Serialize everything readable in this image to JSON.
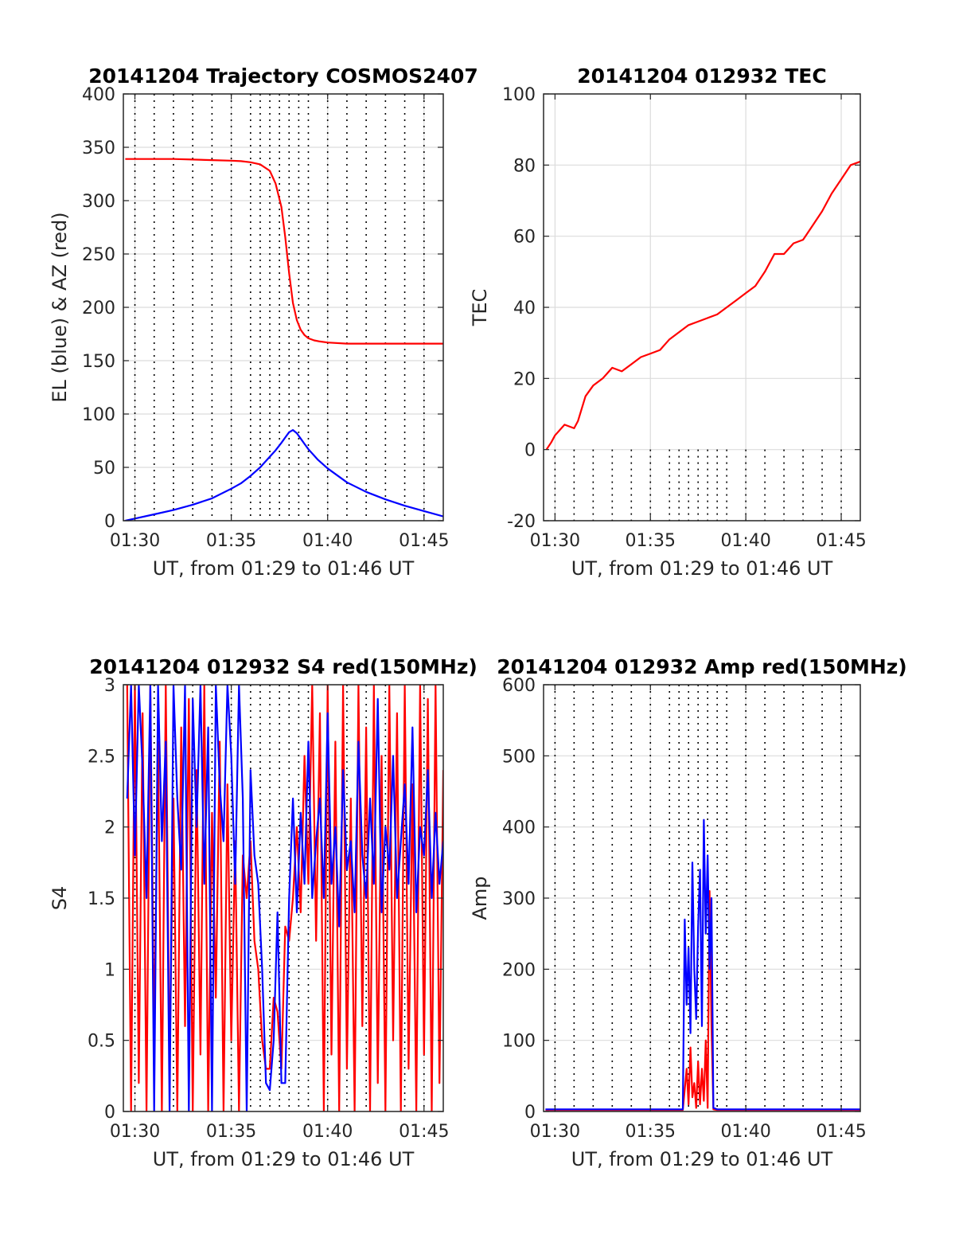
{
  "chart_data": [
    {
      "id": "trajectory",
      "type": "line",
      "title": "20141204 Trajectory COSMOS2407",
      "xlabel": "UT, from 01:29 to 01:46 UT",
      "ylabel": "EL (blue) & AZ (red)",
      "xlim": [
        29.4,
        46.0
      ],
      "ylim": [
        0,
        400
      ],
      "xticks": [
        {
          "v": 30,
          "label": "01:30"
        },
        {
          "v": 35,
          "label": "01:35"
        },
        {
          "v": 40,
          "label": "01:40"
        },
        {
          "v": 45,
          "label": "01:45"
        }
      ],
      "yticks": [
        0,
        50,
        100,
        150,
        200,
        250,
        300,
        350,
        400
      ],
      "grid": true,
      "vlines": [
        30,
        31,
        32,
        33,
        34,
        35,
        36,
        36.5,
        37,
        37.5,
        38,
        38.5,
        39,
        40,
        41,
        42,
        43,
        44,
        45
      ],
      "series": [
        {
          "color": "#ff0000",
          "x": [
            29.5,
            30,
            31,
            32,
            33,
            34,
            35,
            35.5,
            36,
            36.5,
            37,
            37.3,
            37.6,
            37.8,
            38.0,
            38.2,
            38.4,
            38.6,
            38.8,
            39.0,
            39.3,
            39.6,
            40,
            41,
            42,
            43,
            44,
            45,
            46
          ],
          "values": [
            339,
            339,
            339,
            339,
            338.5,
            338,
            337.5,
            337,
            336,
            334,
            328,
            316,
            294,
            266,
            232,
            204,
            188,
            179,
            174,
            171,
            169,
            168,
            167,
            166,
            166,
            166,
            166,
            166,
            166
          ]
        },
        {
          "color": "#0000ff",
          "x": [
            29.5,
            30,
            31,
            32,
            33,
            34,
            35,
            35.5,
            36,
            36.5,
            37,
            37.3,
            37.6,
            37.8,
            38.0,
            38.2,
            38.4,
            38.6,
            38.8,
            39.0,
            39.5,
            40,
            41,
            42,
            43,
            44,
            45,
            46
          ],
          "values": [
            0,
            2,
            6,
            10,
            15,
            21,
            30,
            35,
            42,
            50,
            60,
            66,
            73,
            78,
            83,
            85,
            82,
            77,
            72,
            67,
            57,
            49,
            36,
            27,
            20,
            14,
            9,
            4
          ]
        }
      ]
    },
    {
      "id": "tec",
      "type": "line",
      "title": "20141204 012932 TEC",
      "xlabel": "UT, from 01:29 to 01:46 UT",
      "ylabel": "TEC",
      "xlim": [
        29.4,
        46.0
      ],
      "ylim": [
        -20,
        100
      ],
      "xticks": [
        {
          "v": 30,
          "label": "01:30"
        },
        {
          "v": 35,
          "label": "01:35"
        },
        {
          "v": 40,
          "label": "01:40"
        },
        {
          "v": 45,
          "label": "01:45"
        }
      ],
      "yticks": [
        -20,
        0,
        20,
        40,
        60,
        80,
        100
      ],
      "grid": true,
      "vline_range": [
        -20,
        0
      ],
      "vlines": [
        30,
        31,
        32,
        33,
        34,
        35,
        36,
        36.5,
        37,
        37.5,
        38,
        38.5,
        39,
        40,
        41,
        42,
        43,
        44,
        45
      ],
      "series": [
        {
          "color": "#ff0000",
          "x": [
            29.55,
            29.8,
            30,
            30.5,
            31,
            31.2,
            31.6,
            32,
            32.5,
            33,
            33.5,
            34,
            34.5,
            35,
            35.5,
            36,
            36.5,
            37,
            37.5,
            38,
            38.5,
            39,
            39.5,
            40,
            40.5,
            41,
            41.5,
            42,
            42.5,
            43,
            43.5,
            44,
            44.5,
            45,
            45.5,
            46
          ],
          "values": [
            0,
            2,
            4,
            7,
            6,
            8,
            15,
            18,
            20,
            23,
            22,
            24,
            26,
            27,
            28,
            31,
            33,
            35,
            36,
            37,
            38,
            40,
            42,
            44,
            46,
            50,
            55,
            55,
            58,
            59,
            63,
            67,
            72,
            76,
            80,
            81
          ]
        }
      ]
    },
    {
      "id": "s4",
      "type": "line",
      "title": "20141204 012932 S4 red(150MHz)",
      "xlabel": "UT, from 01:29 to 01:46 UT",
      "ylabel": "S4",
      "xlim": [
        29.4,
        46.0
      ],
      "ylim": [
        0,
        3
      ],
      "xticks": [
        {
          "v": 30,
          "label": "01:30"
        },
        {
          "v": 35,
          "label": "01:35"
        },
        {
          "v": 40,
          "label": "01:40"
        },
        {
          "v": 45,
          "label": "01:45"
        }
      ],
      "yticks": [
        0,
        0.5,
        1,
        1.5,
        2,
        2.5,
        3
      ],
      "ytick_labels": [
        "0",
        "0.5",
        "1",
        "1.5",
        "2",
        "2.5",
        "3"
      ],
      "grid": true,
      "vlines": [
        30,
        31,
        32,
        33,
        34,
        35,
        36,
        36.5,
        37,
        37.5,
        38,
        38.5,
        39,
        40,
        41,
        42,
        43,
        44,
        45
      ],
      "series": [
        {
          "color": "#ff0000",
          "x": [
            29.6,
            29.8,
            30.0,
            30.2,
            30.4,
            30.6,
            30.8,
            31.0,
            31.2,
            31.4,
            31.6,
            31.8,
            32.0,
            32.2,
            32.4,
            32.6,
            32.8,
            33.0,
            33.2,
            33.4,
            33.6,
            33.8,
            34.0,
            34.2,
            34.4,
            34.6,
            34.8,
            35.0,
            35.2,
            35.4,
            35.6,
            35.8,
            36.0,
            36.2,
            36.4,
            36.6,
            36.8,
            37.0,
            37.2,
            37.4,
            37.6,
            37.8,
            38.0,
            38.2,
            38.4,
            38.6,
            38.8,
            39.0,
            39.2,
            39.4,
            39.6,
            39.8,
            40.0,
            40.2,
            40.4,
            40.6,
            40.8,
            41.0,
            41.2,
            41.4,
            41.6,
            41.8,
            42.0,
            42.2,
            42.4,
            42.6,
            42.8,
            43.0,
            43.2,
            43.4,
            43.6,
            43.8,
            44.0,
            44.2,
            44.4,
            44.6,
            44.8,
            45.0,
            45.2,
            45.4,
            45.6,
            45.8,
            46.0
          ],
          "values": [
            3.0,
            0.0,
            3.0,
            0.2,
            2.8,
            0.0,
            3.0,
            0.5,
            2.6,
            0.0,
            3.0,
            0.3,
            2.2,
            0.0,
            2.7,
            0.6,
            2.9,
            0.0,
            2.4,
            0.4,
            3.0,
            0.0,
            2.1,
            0.8,
            2.6,
            0.0,
            2.3,
            0.5,
            1.9,
            0.0,
            1.8,
            1.5,
            1.9,
            1.2,
            1.0,
            0.5,
            0.3,
            0.3,
            0.8,
            0.7,
            0.3,
            1.3,
            1.2,
            1.5,
            2.0,
            1.4,
            2.5,
            1.6,
            3.0,
            1.2,
            2.8,
            0.0,
            3.0,
            0.4,
            2.6,
            0.0,
            3.0,
            0.3,
            2.2,
            0.0,
            3.0,
            0.6,
            2.7,
            0.0,
            3.0,
            0.2,
            2.5,
            0.0,
            3.0,
            0.5,
            2.8,
            0.0,
            3.0,
            0.3,
            2.3,
            0.0,
            3.0,
            0.4,
            2.9,
            0.0,
            3.0,
            0.2,
            2.4
          ]
        },
        {
          "color": "#0000ff",
          "x": [
            29.6,
            29.8,
            30.0,
            30.2,
            30.4,
            30.6,
            30.8,
            31.0,
            31.2,
            31.4,
            31.6,
            31.8,
            32.0,
            32.2,
            32.4,
            32.6,
            32.8,
            33.0,
            33.2,
            33.4,
            33.6,
            33.8,
            34.0,
            34.2,
            34.4,
            34.6,
            34.8,
            35.0,
            35.2,
            35.4,
            35.6,
            35.8,
            36.0,
            36.2,
            36.4,
            36.6,
            36.8,
            37.0,
            37.2,
            37.4,
            37.6,
            37.8,
            38.0,
            38.2,
            38.4,
            38.6,
            38.8,
            39.0,
            39.2,
            39.4,
            39.6,
            39.8,
            40.0,
            40.2,
            40.4,
            40.6,
            40.8,
            41.0,
            41.2,
            41.4,
            41.6,
            41.8,
            42.0,
            42.2,
            42.4,
            42.6,
            42.8,
            43.0,
            43.2,
            43.4,
            43.6,
            43.8,
            44.0,
            44.2,
            44.4,
            44.6,
            44.8,
            45.0,
            45.2,
            45.4,
            45.6,
            45.8,
            46.0
          ],
          "values": [
            2.2,
            3.0,
            1.8,
            3.0,
            2.4,
            1.5,
            3.0,
            0.0,
            3.0,
            1.9,
            2.6,
            0.0,
            3.0,
            2.2,
            1.7,
            3.0,
            0.0,
            2.9,
            2.0,
            3.0,
            1.6,
            2.7,
            0.0,
            3.0,
            2.3,
            1.9,
            3.0,
            2.5,
            1.6,
            3.0,
            2.2,
            0.0,
            2.4,
            1.8,
            1.6,
            1.0,
            0.2,
            0.15,
            0.5,
            1.4,
            0.2,
            0.2,
            1.5,
            2.2,
            1.4,
            2.1,
            1.6,
            2.6,
            1.5,
            1.9,
            2.2,
            1.5,
            2.8,
            1.6,
            2.0,
            1.3,
            2.4,
            1.7,
            1.9,
            1.4,
            2.6,
            1.8,
            1.5,
            2.2,
            1.6,
            2.9,
            1.4,
            2.0,
            1.7,
            2.5,
            1.5,
            1.9,
            2.3,
            1.6,
            2.7,
            1.4,
            2.0,
            1.8,
            2.4,
            1.5,
            2.1,
            1.6,
            1.9
          ]
        }
      ]
    },
    {
      "id": "amp",
      "type": "line",
      "title": "20141204 012932 Amp red(150MHz)",
      "xlabel": "UT, from 01:29 to 01:46 UT",
      "ylabel": "Amp",
      "xlim": [
        29.4,
        46.0
      ],
      "ylim": [
        0,
        600
      ],
      "xticks": [
        {
          "v": 30,
          "label": "01:30"
        },
        {
          "v": 35,
          "label": "01:35"
        },
        {
          "v": 40,
          "label": "01:40"
        },
        {
          "v": 45,
          "label": "01:45"
        }
      ],
      "yticks": [
        0,
        100,
        200,
        300,
        400,
        500,
        600
      ],
      "grid": true,
      "vlines": [
        30,
        31,
        32,
        33,
        34,
        35,
        36,
        36.5,
        37,
        37.5,
        38,
        38.5,
        39,
        40,
        41,
        42,
        43,
        44,
        45
      ],
      "series": [
        {
          "color": "#ff0000",
          "x": [
            29.5,
            30,
            31,
            32,
            33,
            34,
            35,
            36,
            36.7,
            36.9,
            37.0,
            37.1,
            37.2,
            37.3,
            37.4,
            37.5,
            37.6,
            37.7,
            37.8,
            37.9,
            38.0,
            38.1,
            38.2,
            38.3,
            38.5,
            39,
            40,
            41,
            42,
            43,
            44,
            45,
            46
          ],
          "values": [
            2,
            2,
            2,
            2,
            2,
            2,
            2,
            2,
            2,
            60,
            10,
            90,
            20,
            40,
            5,
            70,
            10,
            60,
            15,
            100,
            5,
            310,
            120,
            3,
            2,
            2,
            2,
            2,
            2,
            2,
            2,
            2,
            2
          ]
        },
        {
          "color": "#0000ff",
          "x": [
            29.5,
            30,
            31,
            32,
            33,
            34,
            35,
            36,
            36.7,
            36.8,
            36.9,
            37.0,
            37.1,
            37.2,
            37.3,
            37.4,
            37.5,
            37.6,
            37.7,
            37.8,
            37.9,
            38.0,
            38.1,
            38.2,
            38.3,
            38.5,
            39,
            40,
            41,
            42,
            43,
            44,
            45,
            46
          ],
          "values": [
            3,
            3,
            3,
            3,
            3,
            3,
            3,
            3,
            3,
            270,
            150,
            230,
            110,
            350,
            200,
            130,
            260,
            340,
            120,
            410,
            250,
            360,
            200,
            300,
            5,
            3,
            3,
            3,
            3,
            3,
            3,
            3,
            3,
            3
          ]
        }
      ]
    }
  ]
}
